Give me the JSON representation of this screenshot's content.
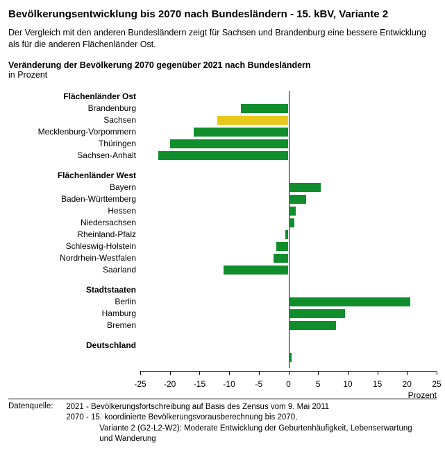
{
  "title": "Bevölkerungsentwicklung bis 2070 nach Bundesländern - 15. kBV, Variante 2",
  "intro": "Der Vergleich mit den anderen Bundesländern zeigt für Sachsen und Brandenburg eine bessere Entwicklung als für die anderen Flächenländer Ost.",
  "subtitle": "Veränderung der Bevölkerung 2070 gegenüber 2021 nach Bundesländern",
  "unit": "in Prozent",
  "chart": {
    "type": "bar-horizontal-diverging",
    "xlim": [
      -25,
      25
    ],
    "xtick_step": 5,
    "xticks": [
      -25,
      -20,
      -15,
      -10,
      -5,
      0,
      5,
      10,
      15,
      20,
      25
    ],
    "axis_title": "Prozent",
    "bar_color": "#118e2c",
    "highlight_color": "#e8c81a",
    "axis_color": "#000000",
    "background": "#ffffff",
    "label_fontsize": 12,
    "group_fontsize": 12,
    "rows": [
      {
        "type": "group",
        "label": "Flächenländer Ost"
      },
      {
        "type": "bar",
        "label": "Brandenburg",
        "value": -8,
        "highlight": false
      },
      {
        "type": "bar",
        "label": "Sachsen",
        "value": -12,
        "highlight": true
      },
      {
        "type": "bar",
        "label": "Mecklenburg-Vorpommern",
        "value": -16,
        "highlight": false
      },
      {
        "type": "bar",
        "label": "Thüringen",
        "value": -20,
        "highlight": false
      },
      {
        "type": "bar",
        "label": "Sachsen-Anhalt",
        "value": -22,
        "highlight": false
      },
      {
        "type": "spacer"
      },
      {
        "type": "group",
        "label": "Flächenländer West"
      },
      {
        "type": "bar",
        "label": "Bayern",
        "value": 5.5,
        "highlight": false
      },
      {
        "type": "bar",
        "label": "Baden-Württemberg",
        "value": 3,
        "highlight": false
      },
      {
        "type": "bar",
        "label": "Hessen",
        "value": 1.2,
        "highlight": false
      },
      {
        "type": "bar",
        "label": "Niedersachsen",
        "value": 1,
        "highlight": false
      },
      {
        "type": "bar",
        "label": "Rheinland-Pfalz",
        "value": -0.5,
        "highlight": false
      },
      {
        "type": "bar",
        "label": "Schleswig-Holstein",
        "value": -2,
        "highlight": false
      },
      {
        "type": "bar",
        "label": "Nordrhein-Westfalen",
        "value": -2.5,
        "highlight": false
      },
      {
        "type": "bar",
        "label": "Saarland",
        "value": -11,
        "highlight": false
      },
      {
        "type": "spacer"
      },
      {
        "type": "group",
        "label": "Stadtstaaten"
      },
      {
        "type": "bar",
        "label": "Berlin",
        "value": 20.5,
        "highlight": false
      },
      {
        "type": "bar",
        "label": "Hamburg",
        "value": 9.5,
        "highlight": false
      },
      {
        "type": "bar",
        "label": "Bremen",
        "value": 8,
        "highlight": false
      },
      {
        "type": "spacer"
      },
      {
        "type": "group",
        "label": "Deutschland"
      },
      {
        "type": "bar",
        "label": "",
        "value": 0.5,
        "highlight": false
      }
    ]
  },
  "footer": {
    "source_label": "Datenquelle:",
    "line1": "2021 - Bevölkerungsfortschreibung auf Basis des Zensus vom 9. Mai 2011",
    "line2": "2070 - 15. koordinierte Bevölkerungsvorausberechnung bis 2070,",
    "line3": "Variante 2 (G2-L2-W2): Moderate Entwicklung der Geburtenhäufigkeit, Lebenserwartung und Wanderung"
  }
}
